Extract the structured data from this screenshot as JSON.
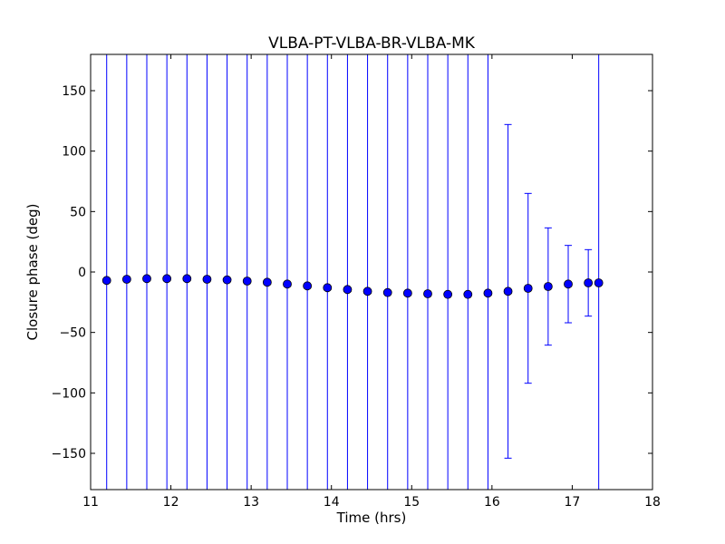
{
  "chart_data": {
    "type": "scatter",
    "title": "VLBA-PT-VLBA-BR-VLBA-MK",
    "xlabel": "Time (hrs)",
    "ylabel": "Closure phase (deg)",
    "xlim": [
      11,
      18
    ],
    "ylim": [
      -180,
      180
    ],
    "xticks": [
      11,
      12,
      13,
      14,
      15,
      16,
      17,
      18
    ],
    "yticks": [
      -150,
      -100,
      -50,
      0,
      50,
      100,
      150
    ],
    "xtick_labels": [
      "11",
      "12",
      "13",
      "14",
      "15",
      "16",
      "17",
      "18"
    ],
    "ytick_labels": [
      "−150",
      "−100",
      "−50",
      "0",
      "50",
      "100",
      "150"
    ],
    "grid": false,
    "marker_color": "#0000ff",
    "errorbar_color": "#0000ff",
    "points": [
      {
        "x": 11.2,
        "y": -7,
        "err": null
      },
      {
        "x": 11.45,
        "y": -6,
        "err": null
      },
      {
        "x": 11.7,
        "y": -5.5,
        "err": null
      },
      {
        "x": 11.95,
        "y": -5.5,
        "err": null
      },
      {
        "x": 12.2,
        "y": -5.5,
        "err": null
      },
      {
        "x": 12.45,
        "y": -6,
        "err": null
      },
      {
        "x": 12.7,
        "y": -6.5,
        "err": null
      },
      {
        "x": 12.95,
        "y": -7.5,
        "err": null
      },
      {
        "x": 13.2,
        "y": -8.5,
        "err": null
      },
      {
        "x": 13.45,
        "y": -10,
        "err": null
      },
      {
        "x": 13.7,
        "y": -11.5,
        "err": null
      },
      {
        "x": 13.95,
        "y": -13,
        "err": null
      },
      {
        "x": 14.2,
        "y": -14.5,
        "err": null
      },
      {
        "x": 14.45,
        "y": -16,
        "err": null
      },
      {
        "x": 14.7,
        "y": -17,
        "err": null
      },
      {
        "x": 14.95,
        "y": -17.5,
        "err": null
      },
      {
        "x": 15.2,
        "y": -18,
        "err": null
      },
      {
        "x": 15.45,
        "y": -18.5,
        "err": null
      },
      {
        "x": 15.7,
        "y": -18.5,
        "err": null
      },
      {
        "x": 15.95,
        "y": -17.5,
        "err": null
      },
      {
        "x": 16.2,
        "y": -16,
        "err": 138
      },
      {
        "x": 16.45,
        "y": -13.5,
        "err": 78.5
      },
      {
        "x": 16.7,
        "y": -12,
        "err": 48.5
      },
      {
        "x": 16.95,
        "y": -10,
        "err": 32
      },
      {
        "x": 17.2,
        "y": -9,
        "err": 27.5
      },
      {
        "x": 17.33,
        "y": -9,
        "err": null
      }
    ]
  }
}
